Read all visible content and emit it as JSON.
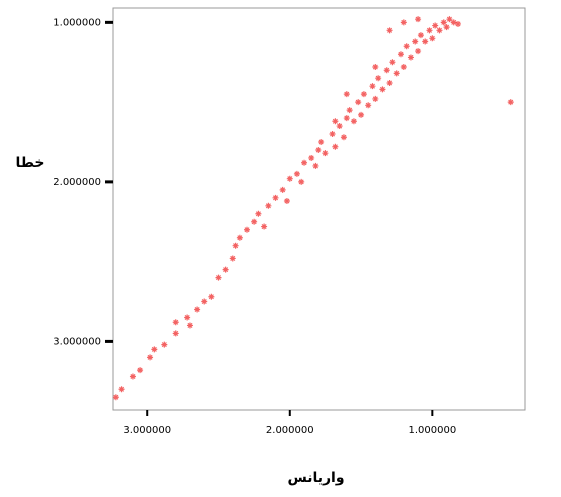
{
  "chart_data": {
    "type": "scatter",
    "x_label": "واریانس",
    "y_label": "خطا",
    "color": "#f03c3c",
    "xlim": [
      3.24,
      0.35
    ],
    "ylim": [
      3.43,
      0.91
    ],
    "xticks": [
      {
        "value": 3,
        "label": "3.000000"
      },
      {
        "value": 2,
        "label": "2.000000"
      },
      {
        "value": 1,
        "label": "1.000000"
      }
    ],
    "yticks": [
      {
        "value": 1,
        "label": "1.000000"
      },
      {
        "value": 2,
        "label": "2.000000"
      },
      {
        "value": 3,
        "label": "3.000000"
      }
    ],
    "x": [
      3.22,
      3.18,
      3.1,
      3.05,
      2.98,
      2.95,
      2.88,
      2.8,
      2.72,
      2.65,
      2.6,
      2.55,
      2.5,
      2.45,
      2.4,
      2.38,
      2.35,
      2.3,
      2.25,
      2.22,
      2.18,
      2.15,
      2.1,
      2.05,
      2.02,
      2.0,
      1.95,
      1.92,
      1.9,
      1.85,
      1.82,
      1.8,
      1.78,
      1.75,
      1.7,
      1.68,
      1.65,
      1.62,
      1.6,
      1.58,
      1.55,
      1.52,
      1.5,
      1.48,
      1.45,
      1.42,
      1.4,
      1.38,
      1.35,
      1.32,
      1.3,
      1.28,
      1.25,
      1.22,
      1.2,
      1.18,
      1.15,
      1.12,
      1.1,
      1.08,
      1.05,
      1.02,
      1.0,
      0.98,
      0.95,
      0.92,
      0.9,
      0.88,
      0.85,
      0.82,
      1.2,
      1.1,
      1.3,
      1.6,
      1.68,
      2.7,
      2.8,
      0.45,
      1.4
    ],
    "values": [
      3.35,
      3.3,
      3.22,
      3.18,
      3.1,
      3.05,
      3.02,
      2.95,
      2.85,
      2.8,
      2.75,
      2.72,
      2.6,
      2.55,
      2.48,
      2.4,
      2.35,
      2.3,
      2.25,
      2.2,
      2.28,
      2.15,
      2.1,
      2.05,
      2.12,
      1.98,
      1.95,
      2.0,
      1.88,
      1.85,
      1.9,
      1.8,
      1.75,
      1.82,
      1.7,
      1.78,
      1.65,
      1.72,
      1.6,
      1.55,
      1.62,
      1.5,
      1.58,
      1.45,
      1.52,
      1.4,
      1.48,
      1.35,
      1.42,
      1.3,
      1.38,
      1.25,
      1.32,
      1.2,
      1.28,
      1.15,
      1.22,
      1.12,
      1.18,
      1.08,
      1.12,
      1.05,
      1.1,
      1.02,
      1.05,
      1.0,
      1.03,
      0.98,
      1.0,
      1.01,
      1.0,
      0.98,
      1.05,
      1.45,
      1.62,
      2.9,
      2.88,
      1.5,
      1.28
    ]
  }
}
